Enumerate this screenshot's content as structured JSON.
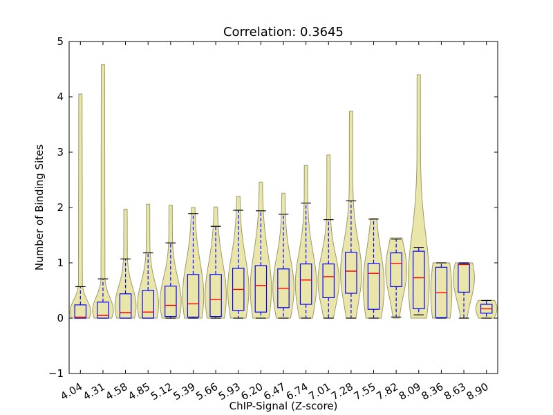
{
  "chart_data": {
    "type": "violin-box",
    "title": "Correlation: 0.3645",
    "xlabel": "ChIP-Signal (Z-score)",
    "ylabel": "Number of Binding Sites",
    "ylim": [
      -1,
      5
    ],
    "yticks": [
      -1,
      0,
      1,
      2,
      3,
      4,
      5
    ],
    "ytick_labels": [
      "−1",
      "0",
      "1",
      "2",
      "3",
      "4",
      "5"
    ],
    "categories": [
      "4.04",
      "4.31",
      "4.58",
      "4.85",
      "5.12",
      "5.39",
      "5.66",
      "5.93",
      "6.20",
      "6.47",
      "6.74",
      "7.01",
      "7.28",
      "7.55",
      "7.82",
      "8.09",
      "8.36",
      "8.63",
      "8.90"
    ],
    "boxes": [
      {
        "q1": 0.0,
        "median": 0.02,
        "q3": 0.24,
        "whisker_low": 0.0,
        "whisker_high": 0.57,
        "violin_max": 4.05
      },
      {
        "q1": 0.0,
        "median": 0.05,
        "q3": 0.29,
        "whisker_low": 0.0,
        "whisker_high": 0.71,
        "violin_max": 4.58
      },
      {
        "q1": 0.0,
        "median": 0.1,
        "q3": 0.44,
        "whisker_low": 0.0,
        "whisker_high": 1.07,
        "violin_max": 1.97
      },
      {
        "q1": 0.0,
        "median": 0.11,
        "q3": 0.5,
        "whisker_low": 0.0,
        "whisker_high": 1.18,
        "violin_max": 2.06
      },
      {
        "q1": 0.03,
        "median": 0.23,
        "q3": 0.58,
        "whisker_low": 0.0,
        "whisker_high": 1.36,
        "violin_max": 2.04
      },
      {
        "q1": 0.02,
        "median": 0.26,
        "q3": 0.79,
        "whisker_low": 0.0,
        "whisker_high": 1.89,
        "violin_max": 2.0
      },
      {
        "q1": 0.03,
        "median": 0.34,
        "q3": 0.79,
        "whisker_low": 0.0,
        "whisker_high": 1.66,
        "violin_max": 2.01
      },
      {
        "q1": 0.14,
        "median": 0.52,
        "q3": 0.9,
        "whisker_low": 0.0,
        "whisker_high": 1.95,
        "violin_max": 2.2
      },
      {
        "q1": 0.11,
        "median": 0.59,
        "q3": 0.95,
        "whisker_low": 0.0,
        "whisker_high": 1.94,
        "violin_max": 2.46
      },
      {
        "q1": 0.19,
        "median": 0.54,
        "q3": 0.89,
        "whisker_low": 0.0,
        "whisker_high": 1.88,
        "violin_max": 2.26
      },
      {
        "q1": 0.25,
        "median": 0.69,
        "q3": 0.98,
        "whisker_low": 0.0,
        "whisker_high": 2.08,
        "violin_max": 2.76
      },
      {
        "q1": 0.37,
        "median": 0.75,
        "q3": 0.98,
        "whisker_low": 0.0,
        "whisker_high": 1.78,
        "violin_max": 2.95
      },
      {
        "q1": 0.45,
        "median": 0.85,
        "q3": 1.19,
        "whisker_low": 0.0,
        "whisker_high": 2.12,
        "violin_max": 3.74
      },
      {
        "q1": 0.16,
        "median": 0.81,
        "q3": 0.99,
        "whisker_low": 0.0,
        "whisker_high": 1.79,
        "violin_max": 1.8
      },
      {
        "q1": 0.57,
        "median": 0.99,
        "q3": 1.18,
        "whisker_low": 0.02,
        "whisker_high": 1.43,
        "violin_max": 1.45
      },
      {
        "q1": 0.17,
        "median": 0.73,
        "q3": 1.21,
        "whisker_low": 0.06,
        "whisker_high": 1.28,
        "violin_max": 4.4
      },
      {
        "q1": 0.01,
        "median": 0.46,
        "q3": 0.92,
        "whisker_low": 0.0,
        "whisker_high": 1.0,
        "violin_max": 1.0
      },
      {
        "q1": 0.47,
        "median": 0.97,
        "q3": 0.98,
        "whisker_low": 0.0,
        "whisker_high": 1.0,
        "violin_max": 1.0
      },
      {
        "q1": 0.09,
        "median": 0.17,
        "q3": 0.25,
        "whisker_low": 0.0,
        "whisker_high": 0.32,
        "violin_max": 0.32
      }
    ],
    "colors": {
      "violin_fill": "#e6e29a",
      "violin_edge": "#9a9a6a",
      "box": "#0000ff",
      "median": "#ff0000",
      "whisker": "#0000ff",
      "cap": "#000000",
      "axes": "#000000"
    }
  }
}
